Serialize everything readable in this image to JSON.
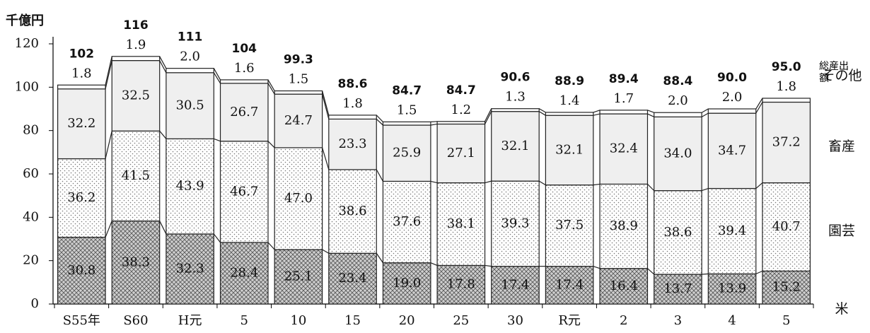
{
  "chart_data": {
    "type": "stacked-bar",
    "unit_label": "千億円",
    "categories": [
      "S55年",
      "S60",
      "H元",
      "5",
      "10",
      "15",
      "20",
      "25",
      "30",
      "R元",
      "2",
      "3",
      "4",
      "5"
    ],
    "ylim": [
      0,
      120
    ],
    "yticks": [
      0,
      20,
      40,
      60,
      80,
      100,
      120
    ],
    "series": [
      {
        "name": "米",
        "color": "#a8a8a8",
        "pattern": "crosshatch",
        "values": [
          30.8,
          38.3,
          32.3,
          28.4,
          25.1,
          23.4,
          19.0,
          17.8,
          17.4,
          17.4,
          16.4,
          13.7,
          13.9,
          15.2
        ],
        "value_labels": [
          "30.8",
          "38.3",
          "32.3",
          "28.4",
          "25.1",
          "23.4",
          "19.0",
          "17.8",
          "17.4",
          "17.4",
          "16.4",
          "13.7",
          "13.9",
          "15.2"
        ]
      },
      {
        "name": "園芸",
        "color": "#777777",
        "pattern": "dots",
        "values": [
          36.2,
          41.5,
          43.9,
          46.7,
          47.0,
          38.6,
          37.6,
          38.1,
          39.3,
          37.5,
          38.9,
          38.6,
          39.4,
          40.7
        ],
        "value_labels": [
          "36.2",
          "41.5",
          "43.9",
          "46.7",
          "47.0",
          "38.6",
          "37.6",
          "38.1",
          "39.3",
          "37.5",
          "38.9",
          "38.6",
          "39.4",
          "40.7"
        ]
      },
      {
        "name": "畜産",
        "color": "#efefef",
        "pattern": "solid",
        "values": [
          32.2,
          32.5,
          30.5,
          26.7,
          24.7,
          23.3,
          25.9,
          27.1,
          32.1,
          32.1,
          32.4,
          34.0,
          34.7,
          37.2
        ],
        "value_labels": [
          "32.2",
          "32.5",
          "30.5",
          "26.7",
          "24.7",
          "23.3",
          "25.9",
          "27.1",
          "32.1",
          "32.1",
          "32.4",
          "34.0",
          "34.7",
          "37.2"
        ]
      },
      {
        "name": "その他",
        "color": "#ffffff",
        "pattern": "solid",
        "values": [
          1.8,
          1.9,
          2.0,
          1.6,
          1.5,
          1.8,
          1.5,
          1.2,
          1.3,
          1.4,
          1.7,
          2.0,
          2.0,
          1.8
        ],
        "value_labels": [
          "1.8",
          "1.9",
          "2.0",
          "1.6",
          "1.5",
          "1.8",
          "1.5",
          "1.2",
          "1.3",
          "1.4",
          "1.7",
          "2.0",
          "2.0",
          "1.8"
        ]
      }
    ],
    "totals": {
      "name": "総産出額",
      "values": [
        102,
        116,
        111,
        104,
        99.3,
        88.6,
        84.7,
        84.7,
        90.6,
        88.9,
        89.4,
        88.4,
        90.0,
        95.0
      ],
      "value_labels": [
        "102",
        "116",
        "111",
        "104",
        "99.3",
        "88.6",
        "84.7",
        "84.7",
        "90.6",
        "88.9",
        "89.4",
        "88.4",
        "90.0",
        "95.0"
      ]
    }
  }
}
